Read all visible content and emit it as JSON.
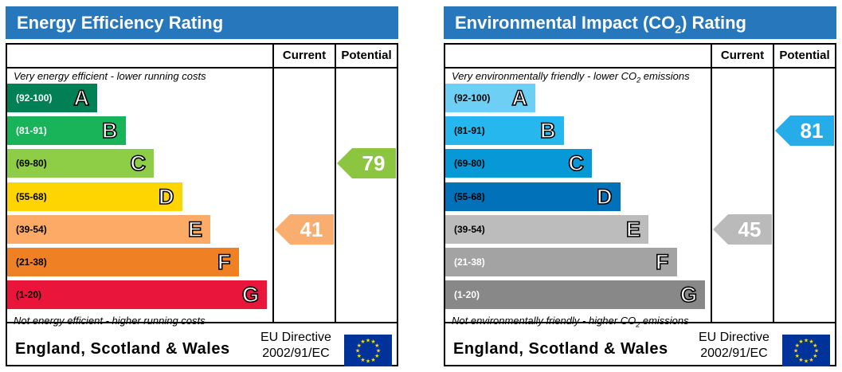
{
  "charts": [
    {
      "id": "energy",
      "title": "Energy Efficiency Rating",
      "title_sub": "",
      "title_after": "",
      "columns": {
        "current": "Current",
        "potential": "Potential"
      },
      "top_text": "Very energy efficient - lower running costs",
      "top_sub": "",
      "top_after": "",
      "bottom_text": "Not energy efficient - higher running costs",
      "bottom_sub": "",
      "bottom_after": "",
      "region": "England, Scotland & Wales",
      "directive_line1": "EU Directive",
      "directive_line2": "2002/91/EC",
      "flag_icon": "eu-flag-icon",
      "current_value": 41,
      "current_color": "#f9ad6e",
      "potential_value": 79,
      "potential_color": "#8cc540"
    },
    {
      "id": "env",
      "title": "Environmental Impact (CO",
      "title_sub": "2",
      "title_after": ") Rating",
      "columns": {
        "current": "Current",
        "potential": "Potential"
      },
      "top_text": "Very environmentally friendly - lower CO",
      "top_sub": "2",
      "top_after": " emissions",
      "bottom_text": "Not environmentally friendly - higher CO",
      "bottom_sub": "2",
      "bottom_after": " emissions",
      "region": "England, Scotland & Wales",
      "directive_line1": "EU Directive",
      "directive_line2": "2002/91/EC",
      "flag_icon": "eu-flag-icon",
      "current_value": 45,
      "current_color": "#bababa",
      "potential_value": 81,
      "potential_color": "#27acea"
    }
  ],
  "chart_data": [
    {
      "type": "bar",
      "title": "Energy Efficiency Rating",
      "categories": [
        "A",
        "B",
        "C",
        "D",
        "E",
        "F",
        "G"
      ],
      "ranges": [
        "(92-100)",
        "(81-91)",
        "(69-80)",
        "(55-68)",
        "(39-54)",
        "(21-38)",
        "(1-20)"
      ],
      "colors": [
        "#008054",
        "#19b459",
        "#8dce46",
        "#ffd500",
        "#fcaa65",
        "#ef8023",
        "#e9153b"
      ],
      "range_text_colors": [
        "#ffffff",
        "#ffffff",
        "#000000",
        "#000000",
        "#000000",
        "#000000",
        "#000000"
      ],
      "current": 41,
      "potential": 79
    },
    {
      "type": "bar",
      "title": "Environmental Impact (CO2) Rating",
      "categories": [
        "A",
        "B",
        "C",
        "D",
        "E",
        "F",
        "G"
      ],
      "ranges": [
        "(92-100)",
        "(81-91)",
        "(69-80)",
        "(55-68)",
        "(39-54)",
        "(21-38)",
        "(1-20)"
      ],
      "colors": [
        "#6ecff5",
        "#26b7ee",
        "#0798d7",
        "#0171b9",
        "#bcbcbc",
        "#a3a3a3",
        "#888888"
      ],
      "range_text_colors": [
        "#000000",
        "#000000",
        "#000000",
        "#000000",
        "#000000",
        "#ffffff",
        "#ffffff"
      ],
      "current": 45,
      "potential": 81
    }
  ]
}
